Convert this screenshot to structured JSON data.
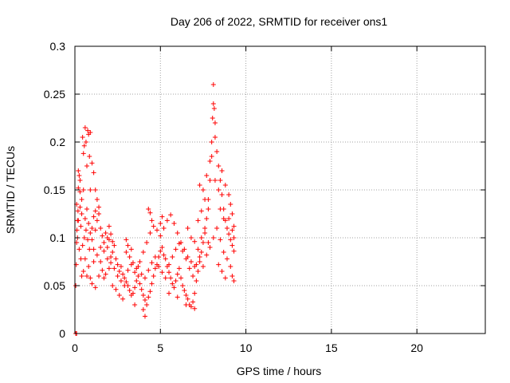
{
  "chart_data": {
    "type": "scatter",
    "title": "Day 206 of 2022, SRMTID for receiver ons1",
    "xlabel": "GPS time / hours",
    "ylabel": "SRMTID / TECUs",
    "xlim": [
      0,
      24
    ],
    "ylim": [
      0,
      0.3
    ],
    "x_ticks": [
      0,
      5,
      10,
      15,
      20
    ],
    "x_tick_labels": [
      "0",
      "5",
      "10",
      "15",
      "20"
    ],
    "y_ticks": [
      0,
      0.05,
      0.1,
      0.15,
      0.2,
      0.25,
      0.3
    ],
    "y_tick_labels": [
      "0",
      "0.05",
      "0.1",
      "0.15",
      "0.2",
      "0.25",
      "0.3"
    ],
    "grid": true,
    "marker": "+",
    "series": [
      {
        "name": "SRMTID",
        "color": "#ff0000",
        "points": [
          [
            0.05,
            0.0
          ],
          [
            0.1,
            0.0
          ],
          [
            0.05,
            0.05
          ],
          [
            0.08,
            0.072
          ],
          [
            0.1,
            0.095
          ],
          [
            0.12,
            0.108
          ],
          [
            0.15,
            0.118
          ],
          [
            0.18,
            0.128
          ],
          [
            0.2,
            0.17
          ],
          [
            0.25,
            0.165
          ],
          [
            0.3,
            0.16
          ],
          [
            0.1,
            0.135
          ],
          [
            0.2,
            0.152
          ],
          [
            0.3,
            0.148
          ],
          [
            0.35,
            0.112
          ],
          [
            0.4,
            0.125
          ],
          [
            0.45,
            0.205
          ],
          [
            0.5,
            0.188
          ],
          [
            0.55,
            0.196
          ],
          [
            0.6,
            0.215
          ],
          [
            0.65,
            0.2
          ],
          [
            0.7,
            0.175
          ],
          [
            0.75,
            0.212
          ],
          [
            0.8,
            0.208
          ],
          [
            0.85,
            0.185
          ],
          [
            0.9,
            0.21
          ],
          [
            1.0,
            0.178
          ],
          [
            1.1,
            0.168
          ],
          [
            1.2,
            0.15
          ],
          [
            0.6,
            0.12
          ],
          [
            0.7,
            0.13
          ],
          [
            0.8,
            0.115
          ],
          [
            0.9,
            0.105
          ],
          [
            1.0,
            0.098
          ],
          [
            1.1,
            0.088
          ],
          [
            1.2,
            0.108
          ],
          [
            1.3,
            0.118
          ],
          [
            1.4,
            0.125
          ],
          [
            1.5,
            0.11
          ],
          [
            1.6,
            0.102
          ],
          [
            1.7,
            0.095
          ],
          [
            1.8,
            0.105
          ],
          [
            1.9,
            0.09
          ],
          [
            2.0,
            0.098
          ],
          [
            0.4,
            0.06
          ],
          [
            0.5,
            0.065
          ],
          [
            0.6,
            0.078
          ],
          [
            0.9,
            0.058
          ],
          [
            1.0,
            0.052
          ],
          [
            1.2,
            0.048
          ],
          [
            1.4,
            0.06
          ],
          [
            1.5,
            0.075
          ],
          [
            1.6,
            0.066
          ],
          [
            1.7,
            0.058
          ],
          [
            1.8,
            0.062
          ],
          [
            2.0,
            0.068
          ],
          [
            2.1,
            0.08
          ],
          [
            2.2,
            0.085
          ],
          [
            2.3,
            0.092
          ],
          [
            2.4,
            0.078
          ],
          [
            2.5,
            0.072
          ],
          [
            2.6,
            0.065
          ],
          [
            2.7,
            0.07
          ],
          [
            2.8,
            0.062
          ],
          [
            2.9,
            0.058
          ],
          [
            3.0,
            0.054
          ],
          [
            3.1,
            0.05
          ],
          [
            3.2,
            0.045
          ],
          [
            3.3,
            0.04
          ],
          [
            3.4,
            0.042
          ],
          [
            3.5,
            0.048
          ],
          [
            3.6,
            0.055
          ],
          [
            3.7,
            0.06
          ],
          [
            3.8,
            0.052
          ],
          [
            3.9,
            0.046
          ],
          [
            4.0,
            0.04
          ],
          [
            4.1,
            0.035
          ],
          [
            4.2,
            0.03
          ],
          [
            4.3,
            0.038
          ],
          [
            4.4,
            0.044
          ],
          [
            4.5,
            0.052
          ],
          [
            4.6,
            0.06
          ],
          [
            4.7,
            0.068
          ],
          [
            4.8,
            0.072
          ],
          [
            4.9,
            0.08
          ],
          [
            5.0,
            0.086
          ],
          [
            5.1,
            0.09
          ],
          [
            5.2,
            0.082
          ],
          [
            5.3,
            0.078
          ],
          [
            5.4,
            0.07
          ],
          [
            5.5,
            0.064
          ],
          [
            5.6,
            0.058
          ],
          [
            5.7,
            0.052
          ],
          [
            5.8,
            0.048
          ],
          [
            5.9,
            0.055
          ],
          [
            6.0,
            0.062
          ],
          [
            6.1,
            0.068
          ],
          [
            6.2,
            0.058
          ],
          [
            6.3,
            0.05
          ],
          [
            6.4,
            0.045
          ],
          [
            6.5,
            0.04
          ],
          [
            6.6,
            0.036
          ],
          [
            6.7,
            0.03
          ],
          [
            6.8,
            0.028
          ],
          [
            6.9,
            0.033
          ],
          [
            7.0,
            0.042
          ],
          [
            7.1,
            0.055
          ],
          [
            7.2,
            0.065
          ],
          [
            7.3,
            0.075
          ],
          [
            7.4,
            0.085
          ],
          [
            7.5,
            0.095
          ],
          [
            7.6,
            0.105
          ],
          [
            7.7,
            0.12
          ],
          [
            7.8,
            0.14
          ],
          [
            7.9,
            0.16
          ],
          [
            8.0,
            0.185
          ],
          [
            8.0,
            0.2
          ],
          [
            8.05,
            0.225
          ],
          [
            8.1,
            0.24
          ],
          [
            8.1,
            0.26
          ],
          [
            8.15,
            0.235
          ],
          [
            8.2,
            0.22
          ],
          [
            8.2,
            0.205
          ],
          [
            8.3,
            0.19
          ],
          [
            8.4,
            0.175
          ],
          [
            8.5,
            0.16
          ],
          [
            8.6,
            0.145
          ],
          [
            8.7,
            0.13
          ],
          [
            8.8,
            0.118
          ],
          [
            8.9,
            0.11
          ],
          [
            9.0,
            0.104
          ],
          [
            9.1,
            0.098
          ],
          [
            9.2,
            0.092
          ],
          [
            9.3,
            0.086
          ],
          [
            8.6,
            0.17
          ],
          [
            8.8,
            0.155
          ],
          [
            9.0,
            0.145
          ],
          [
            9.1,
            0.135
          ],
          [
            9.2,
            0.125
          ],
          [
            9.3,
            0.112
          ],
          [
            3.0,
            0.085
          ],
          [
            3.2,
            0.08
          ],
          [
            3.4,
            0.074
          ],
          [
            3.6,
            0.068
          ],
          [
            3.8,
            0.075
          ],
          [
            4.0,
            0.085
          ],
          [
            4.2,
            0.095
          ],
          [
            4.4,
            0.105
          ],
          [
            4.6,
            0.112
          ],
          [
            4.8,
            0.108
          ],
          [
            5.0,
            0.102
          ],
          [
            5.2,
            0.11
          ],
          [
            5.4,
            0.118
          ],
          [
            5.6,
            0.124
          ],
          [
            5.8,
            0.115
          ],
          [
            6.0,
            0.105
          ],
          [
            6.2,
            0.095
          ],
          [
            6.4,
            0.088
          ],
          [
            6.6,
            0.08
          ],
          [
            6.8,
            0.075
          ],
          [
            7.0,
            0.07
          ],
          [
            7.2,
            0.088
          ],
          [
            7.4,
            0.1
          ],
          [
            7.6,
            0.11
          ],
          [
            7.8,
            0.095
          ],
          [
            2.2,
            0.05
          ],
          [
            2.4,
            0.046
          ],
          [
            2.6,
            0.04
          ],
          [
            2.8,
            0.036
          ],
          [
            3.5,
            0.03
          ],
          [
            4.0,
            0.025
          ],
          [
            4.1,
            0.018
          ],
          [
            5.5,
            0.042
          ],
          [
            6.0,
            0.038
          ],
          [
            6.5,
            0.03
          ],
          [
            7.0,
            0.026
          ],
          [
            1.3,
            0.082
          ],
          [
            1.5,
            0.09
          ],
          [
            1.7,
            0.086
          ],
          [
            1.9,
            0.078
          ],
          [
            2.1,
            0.074
          ],
          [
            2.3,
            0.068
          ],
          [
            2.5,
            0.06
          ],
          [
            2.7,
            0.055
          ],
          [
            2.9,
            0.05
          ],
          [
            3.1,
            0.066
          ],
          [
            3.3,
            0.072
          ],
          [
            3.5,
            0.064
          ],
          [
            3.7,
            0.07
          ],
          [
            3.9,
            0.062
          ],
          [
            4.1,
            0.058
          ],
          [
            4.3,
            0.066
          ],
          [
            4.5,
            0.074
          ],
          [
            4.7,
            0.08
          ],
          [
            4.9,
            0.07
          ],
          [
            5.1,
            0.064
          ],
          [
            5.3,
            0.058
          ],
          [
            5.5,
            0.072
          ],
          [
            5.7,
            0.08
          ],
          [
            5.9,
            0.088
          ],
          [
            6.1,
            0.094
          ],
          [
            6.3,
            0.086
          ],
          [
            6.5,
            0.078
          ],
          [
            6.7,
            0.068
          ],
          [
            6.9,
            0.06
          ],
          [
            7.1,
            0.072
          ],
          [
            7.3,
            0.08
          ],
          [
            7.5,
            0.07
          ],
          [
            7.7,
            0.082
          ],
          [
            7.9,
            0.09
          ],
          [
            8.1,
            0.1
          ],
          [
            8.3,
            0.11
          ],
          [
            8.5,
            0.098
          ],
          [
            8.7,
            0.085
          ],
          [
            8.9,
            0.078
          ],
          [
            9.1,
            0.07
          ],
          [
            9.2,
            0.06
          ],
          [
            9.3,
            0.055
          ],
          [
            8.4,
            0.072
          ],
          [
            8.6,
            0.065
          ],
          [
            8.8,
            0.058
          ],
          [
            1.0,
            0.11
          ],
          [
            1.1,
            0.122
          ],
          [
            1.2,
            0.128
          ],
          [
            1.3,
            0.14
          ],
          [
            1.4,
            0.132
          ],
          [
            0.9,
            0.15
          ],
          [
            0.5,
            0.15
          ],
          [
            0.4,
            0.14
          ],
          [
            0.3,
            0.132
          ],
          [
            0.2,
            0.118
          ],
          [
            0.15,
            0.1
          ],
          [
            0.25,
            0.088
          ],
          [
            0.35,
            0.078
          ],
          [
            0.45,
            0.092
          ],
          [
            0.55,
            0.1
          ],
          [
            0.65,
            0.108
          ],
          [
            0.75,
            0.098
          ],
          [
            0.85,
            0.088
          ],
          [
            1.1,
            0.075
          ],
          [
            0.7,
            0.06
          ],
          [
            0.8,
            0.07
          ],
          [
            1.9,
            0.1
          ],
          [
            2.0,
            0.112
          ],
          [
            2.1,
            0.104
          ],
          [
            2.2,
            0.096
          ],
          [
            3.0,
            0.098
          ],
          [
            3.1,
            0.092
          ],
          [
            3.3,
            0.088
          ],
          [
            4.5,
            0.118
          ],
          [
            4.4,
            0.126
          ],
          [
            4.3,
            0.13
          ],
          [
            5.0,
            0.115
          ],
          [
            5.1,
            0.122
          ],
          [
            6.6,
            0.11
          ],
          [
            6.8,
            0.1
          ],
          [
            7.0,
            0.096
          ],
          [
            7.2,
            0.118
          ],
          [
            7.4,
            0.128
          ],
          [
            7.6,
            0.14
          ],
          [
            7.8,
            0.13
          ],
          [
            7.5,
            0.15
          ],
          [
            7.3,
            0.155
          ],
          [
            7.7,
            0.165
          ],
          [
            7.9,
            0.18
          ],
          [
            8.2,
            0.16
          ],
          [
            8.4,
            0.15
          ],
          [
            8.5,
            0.13
          ],
          [
            8.7,
            0.12
          ],
          [
            9.0,
            0.12
          ],
          [
            9.2,
            0.108
          ],
          [
            9.3,
            0.1
          ]
        ]
      }
    ]
  }
}
